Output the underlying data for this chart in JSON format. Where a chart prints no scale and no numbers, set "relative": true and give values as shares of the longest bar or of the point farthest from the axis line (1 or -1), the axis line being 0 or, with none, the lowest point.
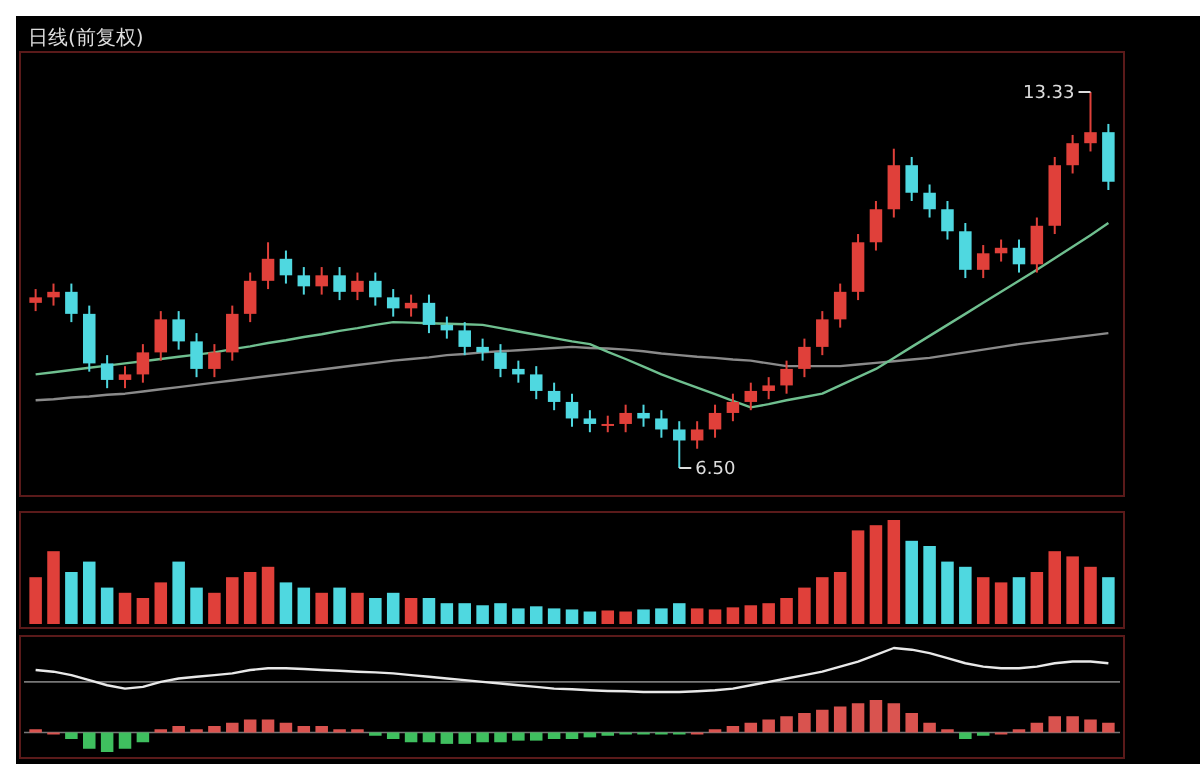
{
  "chart_data": [
    {
      "type": "candlestick",
      "title": "日线(前复权)",
      "categories": [
        null,
        null,
        null,
        null,
        null,
        null,
        null,
        null,
        null,
        null,
        null,
        null,
        null,
        null,
        null,
        null,
        null,
        null,
        null,
        null,
        null,
        null,
        null,
        null,
        null,
        null,
        null,
        null,
        null,
        null,
        null,
        null,
        null,
        null,
        null,
        null,
        null,
        null,
        null,
        null,
        null,
        null,
        null,
        null,
        null,
        null,
        null,
        null,
        null,
        null,
        null,
        null,
        null,
        null,
        null,
        null,
        null,
        null,
        null,
        null,
        null
      ],
      "ohlc": [
        [
          9.5,
          9.75,
          9.35,
          9.6
        ],
        [
          9.6,
          9.85,
          9.45,
          9.7
        ],
        [
          9.7,
          9.85,
          9.15,
          9.3
        ],
        [
          9.3,
          9.45,
          8.25,
          8.4
        ],
        [
          8.4,
          8.55,
          7.95,
          8.1
        ],
        [
          8.1,
          8.35,
          7.95,
          8.2
        ],
        [
          8.2,
          8.75,
          8.05,
          8.6
        ],
        [
          8.6,
          9.35,
          8.45,
          9.2
        ],
        [
          9.2,
          9.35,
          8.65,
          8.8
        ],
        [
          8.8,
          8.95,
          8.15,
          8.3
        ],
        [
          8.3,
          8.75,
          8.15,
          8.6
        ],
        [
          8.6,
          9.45,
          8.45,
          9.3
        ],
        [
          9.3,
          10.05,
          9.15,
          9.9
        ],
        [
          9.9,
          10.6,
          9.75,
          10.3
        ],
        [
          10.3,
          10.45,
          9.85,
          10.0
        ],
        [
          10.0,
          10.15,
          9.65,
          9.8
        ],
        [
          9.8,
          10.15,
          9.65,
          10.0
        ],
        [
          10.0,
          10.15,
          9.55,
          9.7
        ],
        [
          9.7,
          10.05,
          9.55,
          9.9
        ],
        [
          9.9,
          10.05,
          9.45,
          9.6
        ],
        [
          9.6,
          9.75,
          9.25,
          9.4
        ],
        [
          9.4,
          9.65,
          9.25,
          9.5
        ],
        [
          9.5,
          9.65,
          8.95,
          9.1
        ],
        [
          9.1,
          9.25,
          8.85,
          9.0
        ],
        [
          9.0,
          9.15,
          8.55,
          8.7
        ],
        [
          8.7,
          8.85,
          8.45,
          8.6
        ],
        [
          8.6,
          8.75,
          8.15,
          8.3
        ],
        [
          8.3,
          8.45,
          8.05,
          8.2
        ],
        [
          8.2,
          8.35,
          7.75,
          7.9
        ],
        [
          7.9,
          8.05,
          7.55,
          7.7
        ],
        [
          7.7,
          7.85,
          7.25,
          7.4
        ],
        [
          7.4,
          7.55,
          7.15,
          7.3
        ],
        [
          7.3,
          7.45,
          7.15,
          7.3
        ],
        [
          7.3,
          7.65,
          7.15,
          7.5
        ],
        [
          7.5,
          7.65,
          7.25,
          7.4
        ],
        [
          7.4,
          7.55,
          7.05,
          7.2
        ],
        [
          7.2,
          7.35,
          6.5,
          7.0
        ],
        [
          7.0,
          7.35,
          6.85,
          7.2
        ],
        [
          7.2,
          7.65,
          7.05,
          7.5
        ],
        [
          7.5,
          7.85,
          7.35,
          7.7
        ],
        [
          7.7,
          8.05,
          7.55,
          7.9
        ],
        [
          7.9,
          8.15,
          7.75,
          8.0
        ],
        [
          8.0,
          8.45,
          7.85,
          8.3
        ],
        [
          8.3,
          8.85,
          8.15,
          8.7
        ],
        [
          8.7,
          9.35,
          8.55,
          9.2
        ],
        [
          9.2,
          9.85,
          9.05,
          9.7
        ],
        [
          9.7,
          10.75,
          9.55,
          10.6
        ],
        [
          10.6,
          11.35,
          10.45,
          11.2
        ],
        [
          11.2,
          12.3,
          11.05,
          12.0
        ],
        [
          12.0,
          12.15,
          11.35,
          11.5
        ],
        [
          11.5,
          11.65,
          11.05,
          11.2
        ],
        [
          11.2,
          11.35,
          10.65,
          10.8
        ],
        [
          10.8,
          10.95,
          9.95,
          10.1
        ],
        [
          10.1,
          10.55,
          9.95,
          10.4
        ],
        [
          10.4,
          10.65,
          10.25,
          10.5
        ],
        [
          10.5,
          10.65,
          10.05,
          10.2
        ],
        [
          10.2,
          11.05,
          10.05,
          10.9
        ],
        [
          10.9,
          12.15,
          10.75,
          12.0
        ],
        [
          12.0,
          12.55,
          11.85,
          12.4
        ],
        [
          12.4,
          13.33,
          12.25,
          12.6
        ],
        [
          12.6,
          12.75,
          11.55,
          11.7
        ]
      ],
      "colors": [
        "#e0403a",
        "#e0403a",
        "#4fd8e0",
        "#4fd8e0",
        "#4fd8e0",
        "#e0403a",
        "#e0403a",
        "#e0403a",
        "#4fd8e0",
        "#4fd8e0",
        "#e0403a",
        "#e0403a",
        "#e0403a",
        "#e0403a",
        "#4fd8e0",
        "#4fd8e0",
        "#e0403a",
        "#4fd8e0",
        "#e0403a",
        "#4fd8e0",
        "#4fd8e0",
        "#e0403a",
        "#4fd8e0",
        "#4fd8e0",
        "#4fd8e0",
        "#4fd8e0",
        "#4fd8e0",
        "#4fd8e0",
        "#4fd8e0",
        "#4fd8e0",
        "#4fd8e0",
        "#4fd8e0",
        "#e0403a",
        "#e0403a",
        "#4fd8e0",
        "#4fd8e0",
        "#4fd8e0",
        "#e0403a",
        "#e0403a",
        "#e0403a",
        "#e0403a",
        "#e0403a",
        "#e0403a",
        "#e0403a",
        "#e0403a",
        "#e0403a",
        "#e0403a",
        "#e0403a",
        "#e0403a",
        "#4fd8e0",
        "#4fd8e0",
        "#4fd8e0",
        "#4fd8e0",
        "#e0403a",
        "#e0403a",
        "#4fd8e0",
        "#e0403a",
        "#e0403a",
        "#e0403a",
        "#e0403a",
        "#4fd8e0"
      ],
      "series": [
        {
          "type": "line",
          "color": "#8a8a8a",
          "values": [
            7.73,
            7.75,
            7.78,
            7.8,
            7.83,
            7.85,
            7.89,
            7.93,
            7.97,
            8.01,
            8.05,
            8.09,
            8.13,
            8.17,
            8.21,
            8.25,
            8.29,
            8.33,
            8.37,
            8.41,
            8.45,
            8.48,
            8.51,
            8.55,
            8.57,
            8.6,
            8.62,
            8.64,
            8.66,
            8.68,
            8.7,
            8.68,
            8.67,
            8.65,
            8.62,
            8.58,
            8.55,
            8.52,
            8.5,
            8.47,
            8.45,
            8.4,
            8.35,
            8.35,
            8.35,
            8.35,
            8.38,
            8.41,
            8.44,
            8.47,
            8.5,
            8.55,
            8.6,
            8.65,
            8.7,
            8.75,
            8.79,
            8.83,
            8.87,
            8.91,
            8.95
          ]
        },
        {
          "type": "line",
          "color": "#6fbf8f",
          "values": [
            8.2,
            8.24,
            8.28,
            8.32,
            8.36,
            8.4,
            8.44,
            8.48,
            8.52,
            8.56,
            8.6,
            8.66,
            8.71,
            8.77,
            8.82,
            8.88,
            8.93,
            8.99,
            9.04,
            9.1,
            9.15,
            9.14,
            9.13,
            9.12,
            9.11,
            9.1,
            9.04,
            8.98,
            8.92,
            8.86,
            8.8,
            8.75,
            8.61,
            8.48,
            8.34,
            8.2,
            8.08,
            7.96,
            7.84,
            7.72,
            7.6,
            7.66,
            7.73,
            7.79,
            7.85,
            8.0,
            8.15,
            8.3,
            8.5,
            8.7,
            8.9,
            9.1,
            9.3,
            9.5,
            9.7,
            9.9,
            10.1,
            10.31,
            10.52,
            10.73,
            10.95
          ]
        }
      ],
      "annotations": [
        "13.33",
        "6.50"
      ]
    },
    {
      "type": "bar",
      "relative": true,
      "categories": [
        null,
        null,
        null,
        null,
        null,
        null,
        null,
        null,
        null,
        null,
        null,
        null,
        null,
        null,
        null,
        null,
        null,
        null,
        null,
        null,
        null,
        null,
        null,
        null,
        null,
        null,
        null,
        null,
        null,
        null,
        null,
        null,
        null,
        null,
        null,
        null,
        null,
        null,
        null,
        null,
        null,
        null,
        null,
        null,
        null,
        null,
        null,
        null,
        null,
        null,
        null,
        null,
        null,
        null,
        null,
        null,
        null,
        null,
        null,
        null,
        null
      ],
      "values": [
        0.45,
        0.7,
        0.5,
        0.6,
        0.35,
        0.3,
        0.25,
        0.4,
        0.6,
        0.35,
        0.3,
        0.45,
        0.5,
        0.55,
        0.4,
        0.35,
        0.3,
        0.35,
        0.3,
        0.25,
        0.3,
        0.25,
        0.25,
        0.2,
        0.2,
        0.18,
        0.2,
        0.15,
        0.17,
        0.15,
        0.14,
        0.12,
        0.13,
        0.12,
        0.14,
        0.15,
        0.2,
        0.15,
        0.14,
        0.16,
        0.18,
        0.2,
        0.25,
        0.35,
        0.45,
        0.5,
        0.9,
        0.95,
        1.0,
        0.8,
        0.75,
        0.6,
        0.55,
        0.45,
        0.4,
        0.45,
        0.5,
        0.7,
        0.65,
        0.55,
        0.45
      ],
      "colors": [
        "#e0403a",
        "#e0403a",
        "#4fd8e0",
        "#4fd8e0",
        "#4fd8e0",
        "#e0403a",
        "#e0403a",
        "#e0403a",
        "#4fd8e0",
        "#4fd8e0",
        "#e0403a",
        "#e0403a",
        "#e0403a",
        "#e0403a",
        "#4fd8e0",
        "#4fd8e0",
        "#e0403a",
        "#4fd8e0",
        "#e0403a",
        "#4fd8e0",
        "#4fd8e0",
        "#e0403a",
        "#4fd8e0",
        "#4fd8e0",
        "#4fd8e0",
        "#4fd8e0",
        "#4fd8e0",
        "#4fd8e0",
        "#4fd8e0",
        "#4fd8e0",
        "#4fd8e0",
        "#4fd8e0",
        "#e0403a",
        "#e0403a",
        "#4fd8e0",
        "#4fd8e0",
        "#4fd8e0",
        "#e0403a",
        "#e0403a",
        "#e0403a",
        "#e0403a",
        "#e0403a",
        "#e0403a",
        "#e0403a",
        "#e0403a",
        "#e0403a",
        "#e0403a",
        "#e0403a",
        "#e0403a",
        "#4fd8e0",
        "#4fd8e0",
        "#4fd8e0",
        "#4fd8e0",
        "#e0403a",
        "#e0403a",
        "#4fd8e0",
        "#e0403a",
        "#e0403a",
        "#e0403a",
        "#e0403a",
        "#4fd8e0"
      ]
    },
    {
      "type": "bar",
      "relative": true,
      "categories": [
        null,
        null,
        null,
        null,
        null,
        null,
        null,
        null,
        null,
        null,
        null,
        null,
        null,
        null,
        null,
        null,
        null,
        null,
        null,
        null,
        null,
        null,
        null,
        null,
        null,
        null,
        null,
        null,
        null,
        null,
        null,
        null,
        null,
        null,
        null,
        null,
        null,
        null,
        null,
        null,
        null,
        null,
        null,
        null,
        null,
        null,
        null,
        null,
        null,
        null,
        null,
        null,
        null,
        null,
        null,
        null,
        null,
        null,
        null,
        null,
        null
      ],
      "colors": [
        "#d9534f",
        "#d9534f",
        "#3fbf5f",
        "#3fbf5f",
        "#3fbf5f",
        "#3fbf5f",
        "#3fbf5f",
        "#d9534f",
        "#d9534f",
        "#d9534f",
        "#d9534f",
        "#d9534f",
        "#d9534f",
        "#d9534f",
        "#d9534f",
        "#d9534f",
        "#d9534f",
        "#d9534f",
        "#d9534f",
        "#3fbf5f",
        "#3fbf5f",
        "#3fbf5f",
        "#3fbf5f",
        "#3fbf5f",
        "#3fbf5f",
        "#3fbf5f",
        "#3fbf5f",
        "#3fbf5f",
        "#3fbf5f",
        "#3fbf5f",
        "#3fbf5f",
        "#3fbf5f",
        "#3fbf5f",
        "#3fbf5f",
        "#3fbf5f",
        "#3fbf5f",
        "#3fbf5f",
        "#d9534f",
        "#d9534f",
        "#d9534f",
        "#d9534f",
        "#d9534f",
        "#d9534f",
        "#d9534f",
        "#d9534f",
        "#d9534f",
        "#d9534f",
        "#d9534f",
        "#d9534f",
        "#d9534f",
        "#d9534f",
        "#d9534f",
        "#3fbf5f",
        "#3fbf5f",
        "#d9534f",
        "#d9534f",
        "#d9534f",
        "#d9534f",
        "#d9534f",
        "#d9534f",
        "#d9534f"
      ],
      "values": [
        0.1,
        0,
        -0.2,
        -0.5,
        -0.6,
        -0.5,
        -0.3,
        0.1,
        0.2,
        0.1,
        0.2,
        0.3,
        0.4,
        0.4,
        0.3,
        0.2,
        0.2,
        0.1,
        0.1,
        -0.1,
        -0.2,
        -0.3,
        -0.3,
        -0.35,
        -0.35,
        -0.3,
        -0.3,
        -0.25,
        -0.25,
        -0.2,
        -0.2,
        -0.15,
        -0.1,
        -0.05,
        -0.05,
        -0.05,
        -0.05,
        0,
        0.1,
        0.2,
        0.3,
        0.4,
        0.5,
        0.6,
        0.7,
        0.8,
        0.9,
        1.0,
        0.9,
        0.6,
        0.3,
        0.1,
        -0.2,
        -0.1,
        0,
        0.1,
        0.3,
        0.5,
        0.5,
        0.4,
        0.3
      ]
    },
    {
      "type": "line",
      "relative": true,
      "categories": [
        null,
        null,
        null,
        null,
        null,
        null,
        null,
        null,
        null,
        null,
        null,
        null,
        null,
        null,
        null,
        null,
        null,
        null,
        null,
        null,
        null,
        null,
        null,
        null,
        null,
        null,
        null,
        null,
        null,
        null,
        null,
        null,
        null,
        null,
        null,
        null,
        null,
        null,
        null,
        null,
        null,
        null,
        null,
        null,
        null,
        null,
        null,
        null,
        null,
        null,
        null,
        null,
        null,
        null,
        null,
        null,
        null,
        null,
        null,
        null,
        null
      ],
      "color": "#e8e8e8",
      "values": [
        0.35,
        0.3,
        0.2,
        0.05,
        -0.1,
        -0.2,
        -0.15,
        0,
        0.1,
        0.15,
        0.2,
        0.25,
        0.35,
        0.4,
        0.4,
        0.38,
        0.35,
        0.33,
        0.3,
        0.28,
        0.25,
        0.2,
        0.15,
        0.1,
        0.05,
        0,
        -0.05,
        -0.1,
        -0.15,
        -0.2,
        -0.22,
        -0.25,
        -0.27,
        -0.28,
        -0.3,
        -0.3,
        -0.3,
        -0.28,
        -0.25,
        -0.2,
        -0.1,
        0,
        0.1,
        0.2,
        0.3,
        0.45,
        0.6,
        0.8,
        1.0,
        0.95,
        0.85,
        0.7,
        0.55,
        0.45,
        0.4,
        0.4,
        0.45,
        0.55,
        0.6,
        0.6,
        0.55
      ]
    }
  ]
}
